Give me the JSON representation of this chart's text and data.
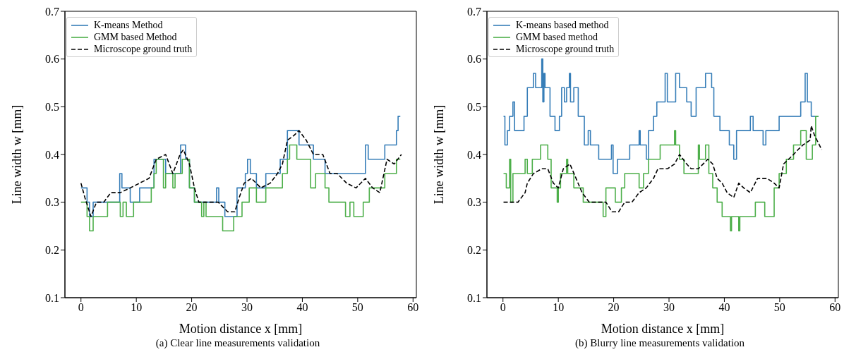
{
  "chart_data": [
    {
      "type": "step",
      "title": "(a) Clear line measurements validation",
      "xlabel": "Motion distance x [mm]",
      "ylabel": "Line width w [mm]",
      "xlim": [
        -2.9,
        60.6
      ],
      "xticks": [
        0,
        10,
        20,
        30,
        40,
        50,
        60
      ],
      "ylim": [
        0.1,
        0.7
      ],
      "yticks": [
        0.1,
        0.2,
        0.3,
        0.4,
        0.5,
        0.6,
        0.7
      ],
      "legend": "top left",
      "series": [
        {
          "name": "K-means Method",
          "color": "#377eb8",
          "x": [
            0,
            1.1,
            1.55,
            2.2,
            7.0,
            7.4,
            8.9,
            10.6,
            13.2,
            15.3,
            18.0,
            18.9,
            19.6,
            20.5,
            24.5,
            24.9,
            26.0,
            28.2,
            29.7,
            30.1,
            30.6,
            31.7,
            33.4,
            36.0,
            37.3,
            39.4,
            42.0,
            44.1,
            51.0,
            51.4,
            51.9,
            54.9,
            57.0,
            57.3,
            57.7
          ],
          "values": [
            0.33,
            0.3,
            0.27,
            0.3,
            0.36,
            0.33,
            0.3,
            0.33,
            0.39,
            0.36,
            0.42,
            0.39,
            0.33,
            0.3,
            0.33,
            0.3,
            0.27,
            0.33,
            0.36,
            0.39,
            0.36,
            0.33,
            0.36,
            0.39,
            0.45,
            0.42,
            0.39,
            0.36,
            0.36,
            0.42,
            0.39,
            0.42,
            0.45,
            0.48,
            0.48
          ]
        },
        {
          "name": "GMM based Method",
          "color": "#4daf4a",
          "x": [
            0,
            1.1,
            1.55,
            2.2,
            4.8,
            7.1,
            7.6,
            8.2,
            9.5,
            12.7,
            13.2,
            13.6,
            14.9,
            15.3,
            16.6,
            17.0,
            18.3,
            19.6,
            20.5,
            21.8,
            22.2,
            22.6,
            25.6,
            27.6,
            29.1,
            30.4,
            31.7,
            33.4,
            36.4,
            37.3,
            37.7,
            39.0,
            41.5,
            42.4,
            44.1,
            44.8,
            47.8,
            48.6,
            49.3,
            51.0,
            52.1,
            54.9,
            57.0,
            57.7
          ],
          "values": [
            0.3,
            0.27,
            0.24,
            0.27,
            0.3,
            0.27,
            0.3,
            0.27,
            0.3,
            0.33,
            0.36,
            0.39,
            0.33,
            0.36,
            0.33,
            0.36,
            0.39,
            0.33,
            0.3,
            0.27,
            0.3,
            0.27,
            0.24,
            0.27,
            0.3,
            0.33,
            0.3,
            0.33,
            0.36,
            0.39,
            0.42,
            0.39,
            0.33,
            0.36,
            0.33,
            0.3,
            0.27,
            0.3,
            0.27,
            0.3,
            0.33,
            0.36,
            0.39,
            0.39
          ]
        },
        {
          "name": "Microscope ground truth",
          "color": "#000000",
          "type": "line",
          "line_style": "dashed",
          "x": [
            0.0,
            0.7,
            1.8,
            2.8,
            4.1,
            5.4,
            7.1,
            8.9,
            10.6,
            12.3,
            13.6,
            15.3,
            16.6,
            17.9,
            18.5,
            19.6,
            20.5,
            21.3,
            23.1,
            24.8,
            26.5,
            27.8,
            28.6,
            29.5,
            30.8,
            32.5,
            34.2,
            35.5,
            36.4,
            37.3,
            38.5,
            39.4,
            40.7,
            42.0,
            43.7,
            45.0,
            46.3,
            48.0,
            49.7,
            51.4,
            52.7,
            54.0,
            55.3,
            56.6,
            57.9
          ],
          "values": [
            0.34,
            0.31,
            0.27,
            0.3,
            0.3,
            0.32,
            0.32,
            0.33,
            0.34,
            0.35,
            0.39,
            0.4,
            0.36,
            0.4,
            0.41,
            0.38,
            0.33,
            0.3,
            0.3,
            0.3,
            0.28,
            0.28,
            0.31,
            0.34,
            0.35,
            0.33,
            0.34,
            0.36,
            0.38,
            0.43,
            0.44,
            0.45,
            0.43,
            0.4,
            0.4,
            0.36,
            0.36,
            0.34,
            0.33,
            0.35,
            0.33,
            0.32,
            0.39,
            0.38,
            0.4
          ]
        }
      ]
    },
    {
      "type": "step",
      "title": "(b) Blurry line measurements validation",
      "xlabel": "Motion distance x [mm]",
      "ylabel": "Line width w [mm]",
      "xlim": [
        -2.9,
        60.6
      ],
      "xticks": [
        0,
        10,
        20,
        30,
        40,
        50,
        60
      ],
      "ylim": [
        0.1,
        0.7
      ],
      "yticks": [
        0.1,
        0.2,
        0.3,
        0.4,
        0.5,
        0.6,
        0.7
      ],
      "legend": "top left",
      "series": [
        {
          "name": "K-means based method",
          "color": "#377eb8",
          "x": [
            0.1,
            0.35,
            0.8,
            1.2,
            1.8,
            2.1,
            3.8,
            4.4,
            5.5,
            5.9,
            7.0,
            7.2,
            7.4,
            7.6,
            8.5,
            9.4,
            10.2,
            10.6,
            11.1,
            11.5,
            12.0,
            12.2,
            12.8,
            13.6,
            14.7,
            15.4,
            15.8,
            17.3,
            19.6,
            19.9,
            20.7,
            22.9,
            24.6,
            24.8,
            25.9,
            26.3,
            27.2,
            27.8,
            29.3,
            29.7,
            31.2,
            31.9,
            33.2,
            34.0,
            34.9,
            36.6,
            37.7,
            38.1,
            39.2,
            40.9,
            41.7,
            42.2,
            44.7,
            45.2,
            47.0,
            47.5,
            49.9,
            53.8,
            54.6,
            55.0,
            55.7,
            57.0
          ],
          "values": [
            0.48,
            0.42,
            0.45,
            0.48,
            0.51,
            0.45,
            0.48,
            0.54,
            0.57,
            0.54,
            0.6,
            0.51,
            0.57,
            0.54,
            0.48,
            0.45,
            0.48,
            0.54,
            0.51,
            0.54,
            0.57,
            0.51,
            0.54,
            0.48,
            0.42,
            0.45,
            0.42,
            0.39,
            0.42,
            0.36,
            0.39,
            0.42,
            0.45,
            0.42,
            0.39,
            0.45,
            0.48,
            0.51,
            0.57,
            0.51,
            0.57,
            0.54,
            0.51,
            0.48,
            0.54,
            0.57,
            0.54,
            0.48,
            0.45,
            0.42,
            0.39,
            0.45,
            0.48,
            0.45,
            0.42,
            0.45,
            0.48,
            0.51,
            0.57,
            0.51,
            0.48,
            0.48
          ]
        },
        {
          "name": "GMM based method",
          "color": "#4daf4a",
          "x": [
            0.1,
            0.6,
            1.2,
            1.4,
            1.8,
            4.0,
            4.4,
            5.3,
            6.8,
            8.1,
            8.7,
            9.8,
            10.0,
            10.4,
            11.5,
            11.7,
            12.8,
            14.5,
            18.1,
            18.6,
            20.3,
            21.4,
            22.0,
            24.6,
            25.4,
            26.3,
            28.4,
            31.0,
            31.2,
            31.9,
            32.7,
            35.3,
            35.5,
            36.6,
            37.2,
            37.9,
            38.7,
            39.6,
            41.1,
            41.3,
            42.6,
            42.8,
            45.6,
            47.3,
            49.0,
            49.9,
            51.2,
            52.5,
            53.8,
            54.8,
            55.9,
            56.5,
            57.0
          ],
          "values": [
            0.36,
            0.33,
            0.39,
            0.3,
            0.36,
            0.39,
            0.36,
            0.39,
            0.42,
            0.39,
            0.33,
            0.3,
            0.33,
            0.36,
            0.39,
            0.36,
            0.33,
            0.3,
            0.27,
            0.33,
            0.3,
            0.33,
            0.36,
            0.33,
            0.36,
            0.39,
            0.42,
            0.45,
            0.42,
            0.39,
            0.36,
            0.42,
            0.39,
            0.42,
            0.36,
            0.33,
            0.3,
            0.27,
            0.24,
            0.27,
            0.24,
            0.27,
            0.3,
            0.27,
            0.33,
            0.36,
            0.39,
            0.42,
            0.45,
            0.39,
            0.42,
            0.48,
            0.48
          ]
        },
        {
          "name": "Microscope ground truth",
          "color": "#000000",
          "type": "line",
          "line_style": "dashed",
          "x": [
            0.1,
            2.7,
            4.0,
            4.4,
            5.5,
            7.0,
            8.1,
            9.1,
            10.0,
            10.9,
            12.1,
            13.2,
            14.3,
            15.6,
            16.9,
            18.6,
            19.7,
            20.9,
            22.0,
            23.3,
            24.6,
            25.9,
            27.2,
            28.0,
            29.7,
            31.0,
            31.9,
            33.2,
            34.0,
            35.3,
            37.0,
            37.9,
            38.7,
            39.6,
            40.5,
            41.7,
            42.6,
            43.5,
            44.7,
            46.0,
            47.7,
            49.0,
            49.9,
            50.7,
            51.6,
            52.5,
            53.3,
            54.2,
            55.5,
            55.7,
            56.3,
            57.6
          ],
          "values": [
            0.3,
            0.3,
            0.32,
            0.34,
            0.36,
            0.37,
            0.37,
            0.34,
            0.33,
            0.37,
            0.38,
            0.35,
            0.32,
            0.3,
            0.3,
            0.3,
            0.28,
            0.28,
            0.3,
            0.3,
            0.32,
            0.33,
            0.35,
            0.37,
            0.37,
            0.38,
            0.4,
            0.38,
            0.37,
            0.37,
            0.39,
            0.38,
            0.35,
            0.34,
            0.32,
            0.31,
            0.34,
            0.33,
            0.32,
            0.35,
            0.35,
            0.34,
            0.33,
            0.38,
            0.39,
            0.4,
            0.41,
            0.42,
            0.43,
            0.46,
            0.44,
            0.41
          ]
        }
      ]
    }
  ]
}
